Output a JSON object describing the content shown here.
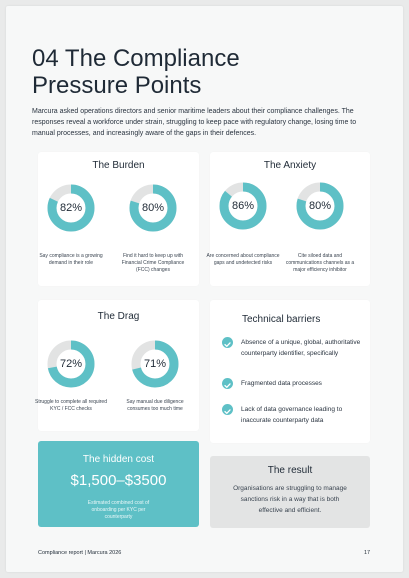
{
  "title": "04 The Compliance Pressure Points",
  "intro": "Marcura asked operations directors and senior maritime leaders about their compliance challenges. The responses reveal a workforce under strain, struggling to keep pace with regulatory change, losing time to manual processes, and increasingly aware of the gaps in their defences.",
  "colors": {
    "accent": "#5ec0c6",
    "track": "#e2e3e3"
  },
  "burden": {
    "title": "The Burden",
    "stats": [
      {
        "value": 82,
        "label": "82%",
        "caption": "Say compliance is a growing demand in their role"
      },
      {
        "value": 80,
        "label": "80%",
        "caption": "Find it hard to keep up with Financial Crime Compliance (FCC) changes"
      }
    ]
  },
  "anxiety": {
    "title": "The Anxiety",
    "stats": [
      {
        "value": 86,
        "label": "86%",
        "caption": "Are concerned about compliance gaps and undetected risks"
      },
      {
        "value": 80,
        "label": "80%",
        "caption": "Cite siloed data and communications channels as a major efficiency inhibitor"
      }
    ]
  },
  "drag": {
    "title": "The Drag",
    "stats": [
      {
        "value": 72,
        "label": "72%",
        "caption": "Struggle to complete all required KYC / FCC checks"
      },
      {
        "value": 71,
        "label": "71%",
        "caption": "Say manual due diligence consumes too much time"
      }
    ]
  },
  "technical_barriers": {
    "title": "Technical barriers",
    "items": [
      "Absence of a unique, global, authoritative counterparty identifier, specifically",
      "Fragmented data processes",
      "Lack of data governance leading to inaccurate counterparty data"
    ]
  },
  "hidden_cost": {
    "title": "The hidden cost",
    "value": "$1,500–$3500",
    "caption": "Estimated combined cost of onboarding per KYC per counterparty"
  },
  "result": {
    "title": "The result",
    "text": "Organisations are struggling to manage sanctions risk in a way that is both effective and efficient."
  },
  "footer": {
    "left": "Compliance report | Marcura 2026",
    "page": "17"
  }
}
